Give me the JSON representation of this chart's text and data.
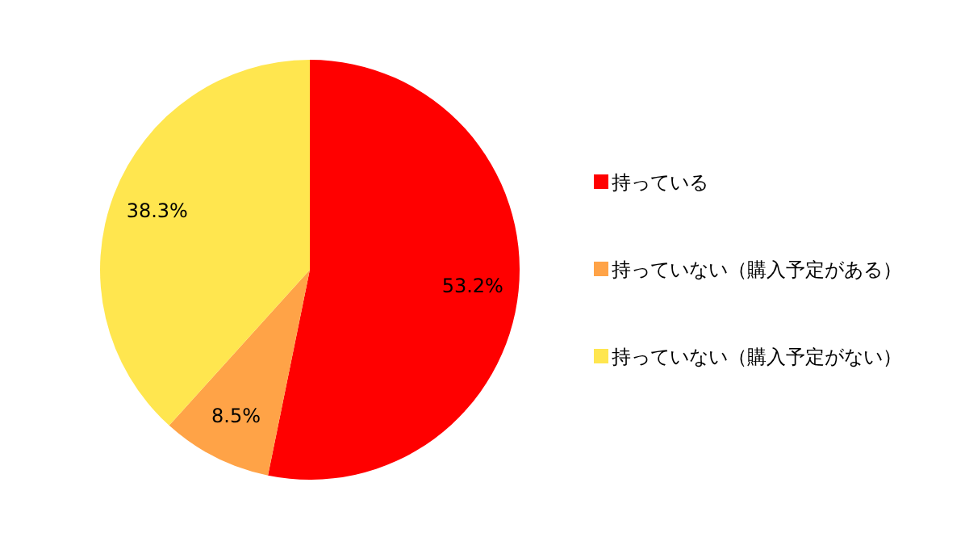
{
  "chart_data": {
    "type": "pie",
    "categories": [
      "持っている",
      "持っていない（購入予定がある）",
      "持っていない（購入予定がない）"
    ],
    "values": [
      53.2,
      8.5,
      38.3
    ],
    "colors": [
      "#ff0000",
      "#ffa347",
      "#ffe64f"
    ],
    "value_labels": [
      "53.2%",
      "8.5%",
      "38.3%"
    ],
    "legend": "right"
  }
}
